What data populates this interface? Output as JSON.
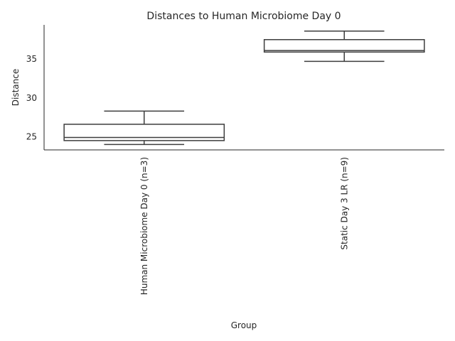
{
  "chart_data": {
    "type": "box",
    "title": "Distances to Human Microbiome Day 0",
    "xlabel": "Group",
    "ylabel": "Distance",
    "categories": [
      "Human Microbiome Day 0 (n=3)",
      "Static Day 3 LR (n=9)"
    ],
    "boxes": [
      {
        "min": 24.0,
        "q1": 24.5,
        "median": 24.9,
        "q3": 26.6,
        "max": 28.3
      },
      {
        "min": 34.7,
        "q1": 35.9,
        "median": 36.1,
        "q3": 37.5,
        "max": 38.6
      }
    ],
    "ylim": [
      23.3,
      39.4
    ],
    "yticks": [
      25,
      30,
      35
    ],
    "grid": false
  }
}
